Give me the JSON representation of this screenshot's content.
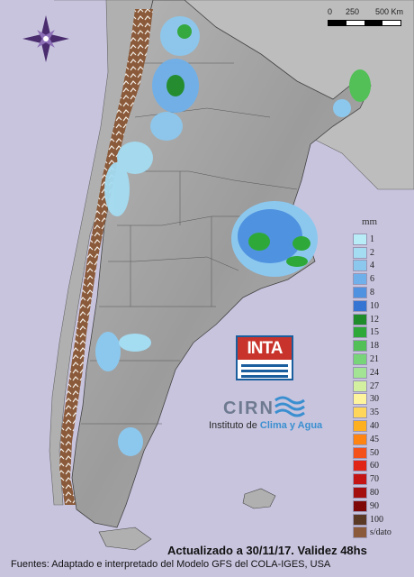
{
  "scale": {
    "labels": [
      "0",
      "250",
      "500 Km"
    ]
  },
  "legend": {
    "unit": "mm",
    "items": [
      {
        "label": "1",
        "color": "#b8ecf6"
      },
      {
        "label": "2",
        "color": "#a4dcf2"
      },
      {
        "label": "4",
        "color": "#8cc8ee"
      },
      {
        "label": "6",
        "color": "#6fb0ea"
      },
      {
        "label": "8",
        "color": "#4f92e0"
      },
      {
        "label": "10",
        "color": "#3574d2"
      },
      {
        "label": "12",
        "color": "#1e8c2a"
      },
      {
        "label": "15",
        "color": "#2fa83a"
      },
      {
        "label": "18",
        "color": "#52c056"
      },
      {
        "label": "21",
        "color": "#78d478"
      },
      {
        "label": "24",
        "color": "#a2e494"
      },
      {
        "label": "27",
        "color": "#d2f0a0"
      },
      {
        "label": "30",
        "color": "#fff49e"
      },
      {
        "label": "35",
        "color": "#ffd65a"
      },
      {
        "label": "40",
        "color": "#ffb020"
      },
      {
        "label": "45",
        "color": "#ff8412"
      },
      {
        "label": "50",
        "color": "#f4501a"
      },
      {
        "label": "60",
        "color": "#e02418"
      },
      {
        "label": "70",
        "color": "#c41414"
      },
      {
        "label": "80",
        "color": "#a40e0e"
      },
      {
        "label": "90",
        "color": "#7e0808"
      },
      {
        "label": "100",
        "color": "#5a3a24"
      },
      {
        "label": "s/dato",
        "color": "#8a5a3a"
      }
    ]
  },
  "logos": {
    "inta": "INTA",
    "cirn": "CIRN",
    "institute_prefix": "Instituto de",
    "institute_name": "Clima y Agua"
  },
  "footer": {
    "updated": "Actualizado a 30/11/17. Validez 48hs",
    "sources": "Fuentes: Adaptado e interpretado del Modelo GFS del COLA-IGES, USA"
  },
  "colors": {
    "sea": "#c8c4de",
    "land": "#a8a8a8",
    "no_data": "#8a5a3a"
  }
}
